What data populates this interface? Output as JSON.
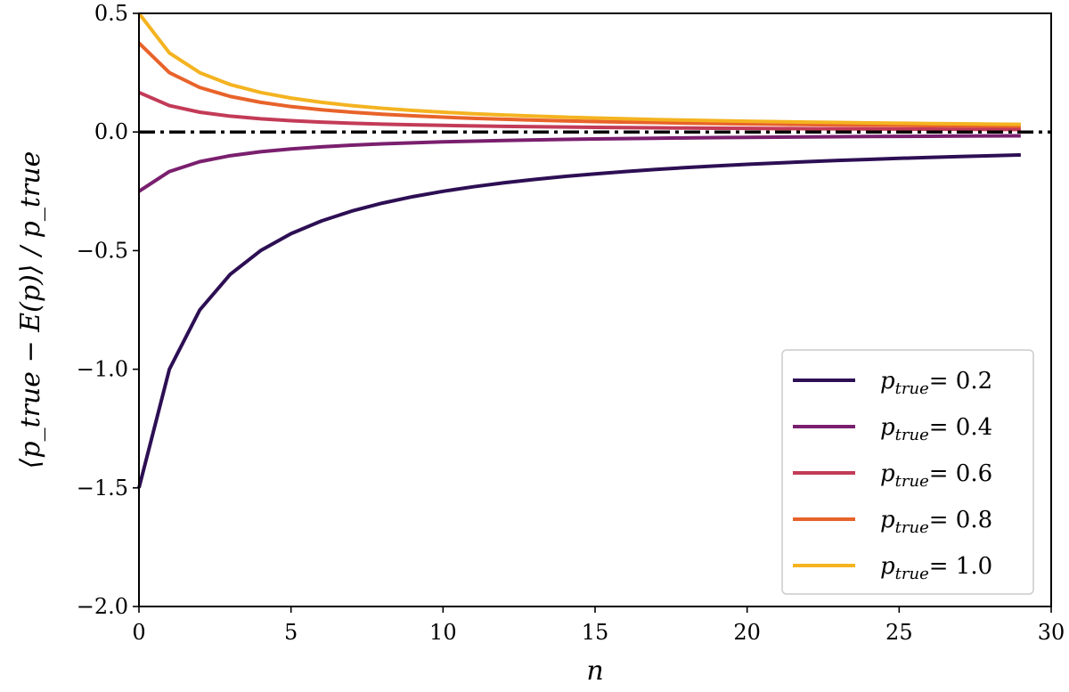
{
  "chart_data": {
    "type": "line",
    "xlabel": "n",
    "ylabel": "⟨p_true − E(p)⟩ / p_true",
    "xlim": [
      0,
      30
    ],
    "ylim": [
      -2.0,
      0.5
    ],
    "xticks": [
      "0",
      "5",
      "10",
      "15",
      "20",
      "25",
      "30"
    ],
    "yticks": [
      "0.5",
      "0.0",
      "−0.5",
      "−1.0",
      "−1.5",
      "−2.0"
    ],
    "grid": false,
    "legend_position": "bottom-right",
    "reference_line": {
      "y": 0.0,
      "style": "dash-dot",
      "color": "#000000"
    },
    "x": [
      0,
      1,
      2,
      3,
      4,
      5,
      6,
      7,
      8,
      9,
      10,
      11,
      12,
      13,
      14,
      15,
      16,
      17,
      18,
      19,
      20,
      21,
      22,
      23,
      24,
      25,
      26,
      27,
      28,
      29
    ],
    "series": [
      {
        "name_prefix": "p",
        "name_sub": "true",
        "name_value": "= 0.2",
        "color": "#2d0f54",
        "values": [
          -1.5,
          -1.0,
          -0.75,
          -0.6,
          -0.5,
          -0.4286,
          -0.375,
          -0.3333,
          -0.3,
          -0.2727,
          -0.25,
          -0.2308,
          -0.2143,
          -0.2,
          -0.1875,
          -0.1765,
          -0.1667,
          -0.1579,
          -0.15,
          -0.1429,
          -0.1364,
          -0.1304,
          -0.125,
          -0.12,
          -0.1154,
          -0.1111,
          -0.1071,
          -0.1034,
          -0.1,
          -0.0968
        ]
      },
      {
        "name_prefix": "p",
        "name_sub": "true",
        "name_value": "= 0.4",
        "color": "#7a1f6e",
        "values": [
          -0.25,
          -0.1667,
          -0.125,
          -0.1,
          -0.0833,
          -0.0714,
          -0.0625,
          -0.0556,
          -0.05,
          -0.0455,
          -0.0417,
          -0.0385,
          -0.0357,
          -0.0333,
          -0.0313,
          -0.0294,
          -0.0278,
          -0.0263,
          -0.025,
          -0.0238,
          -0.0227,
          -0.0217,
          -0.0208,
          -0.02,
          -0.0192,
          -0.0185,
          -0.0179,
          -0.0172,
          -0.0167,
          -0.0161
        ]
      },
      {
        "name_prefix": "p",
        "name_sub": "true",
        "name_value": "= 0.6",
        "color": "#c33b57",
        "values": [
          0.1667,
          0.1111,
          0.0833,
          0.0667,
          0.0556,
          0.0476,
          0.0417,
          0.037,
          0.0333,
          0.0303,
          0.0278,
          0.0256,
          0.0238,
          0.0222,
          0.0208,
          0.0196,
          0.0185,
          0.0175,
          0.0167,
          0.0159,
          0.0152,
          0.0145,
          0.0139,
          0.0133,
          0.0128,
          0.0123,
          0.0119,
          0.0115,
          0.0111,
          0.0108
        ]
      },
      {
        "name_prefix": "p",
        "name_sub": "true",
        "name_value": "= 0.8",
        "color": "#e8632a",
        "values": [
          0.375,
          0.25,
          0.1875,
          0.15,
          0.125,
          0.1071,
          0.0938,
          0.0833,
          0.075,
          0.0682,
          0.0625,
          0.0577,
          0.0536,
          0.05,
          0.0469,
          0.0441,
          0.0417,
          0.0395,
          0.0375,
          0.0357,
          0.0341,
          0.0326,
          0.0313,
          0.03,
          0.0288,
          0.0278,
          0.0268,
          0.0259,
          0.025,
          0.0242
        ]
      },
      {
        "name_prefix": "p",
        "name_sub": "true",
        "name_value": "= 1.0",
        "color": "#f4b320",
        "values": [
          0.5,
          0.3333,
          0.25,
          0.2,
          0.1667,
          0.1429,
          0.125,
          0.1111,
          0.1,
          0.0909,
          0.0833,
          0.0769,
          0.0714,
          0.0667,
          0.0625,
          0.0588,
          0.0556,
          0.0526,
          0.05,
          0.0476,
          0.0455,
          0.0435,
          0.0417,
          0.04,
          0.0385,
          0.037,
          0.0357,
          0.0345,
          0.0333,
          0.0323
        ]
      }
    ]
  }
}
